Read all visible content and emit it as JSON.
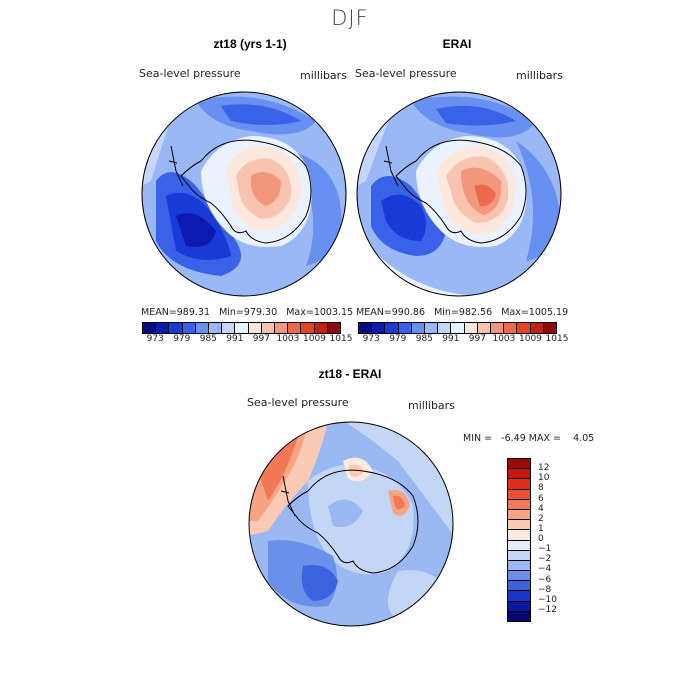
{
  "page": {
    "season": "DJF"
  },
  "panel_model": {
    "title": "zt18 (yrs 1-1)",
    "variable": "Sea-level pressure",
    "units": "millibars",
    "stats": {
      "mean_label": "MEAN=",
      "mean": "989.31",
      "min_label": "Min=",
      "min": "979.30",
      "max_label": "Max=",
      "max": "1003.15"
    }
  },
  "panel_obs": {
    "title": "ERAI",
    "variable": "Sea-level pressure",
    "units": "millibars",
    "stats": {
      "mean_label": "MEAN=",
      "mean": "990.86",
      "min_label": "Min=",
      "min": "982.56",
      "max_label": "Max=",
      "max": "1005.19"
    }
  },
  "colorbar_top": {
    "labels": [
      "973",
      "979",
      "985",
      "991",
      "997",
      "1003",
      "1009",
      "1015"
    ],
    "colors": [
      "#0a0a80",
      "#0c1ab0",
      "#1a3ad8",
      "#3a62e8",
      "#6890f0",
      "#9ab8f5",
      "#c4d6fa",
      "#eaf2fd",
      "#fde8de",
      "#f8c4b0",
      "#f2967c",
      "#ec6a4c",
      "#e24226",
      "#c42014",
      "#8e0a0a"
    ]
  },
  "panel_diff": {
    "title": "zt18 - ERAI",
    "variable": "Sea-level pressure",
    "units": "millibars",
    "stats": {
      "min_label": "MIN =",
      "min": "-6.49",
      "max_label": "MAX =",
      "max": "4.05"
    }
  },
  "colorbar_diff": {
    "labels": [
      "12",
      "10",
      "8",
      "6",
      "4",
      "2",
      "1",
      "0",
      "−1",
      "−2",
      "−4",
      "−6",
      "−8",
      "−10",
      "−12"
    ],
    "colors": [
      "#9a0a0a",
      "#c41810",
      "#e02e18",
      "#ec5030",
      "#f27858",
      "#f7a484",
      "#fbcab4",
      "#fdeadf",
      "#e4eefb",
      "#c4d6f6",
      "#9ab8f2",
      "#6a90ea",
      "#3c62de",
      "#1c36c8",
      "#0c16a0",
      "#040a70"
    ]
  }
}
